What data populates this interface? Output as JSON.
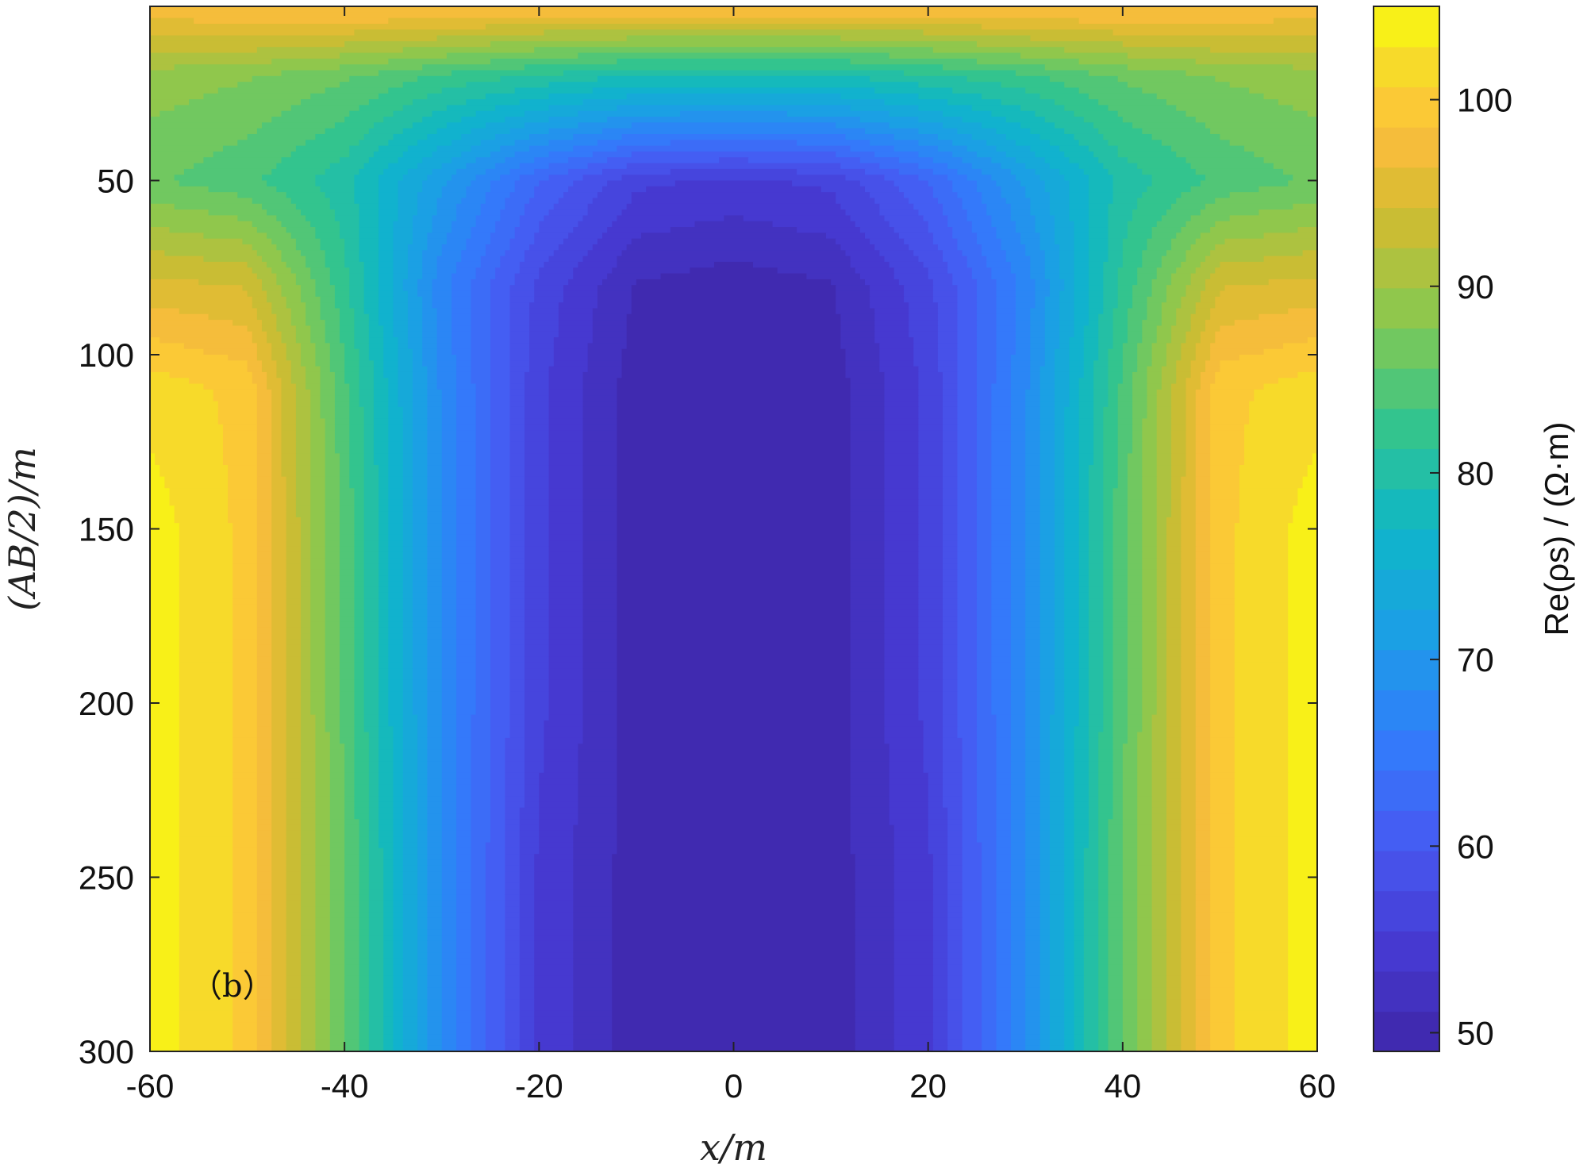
{
  "chart_data": {
    "type": "heatmap",
    "plot_kind": "filled contour",
    "panel_label": "（b）",
    "xlabel": "x/m",
    "ylabel": "(AB/2)/m",
    "colorbar_label": "Re(ρs) / (Ω·m)",
    "colormap": "parula",
    "x_ticks": [
      "-60",
      "-40",
      "-20",
      "0",
      "20",
      "40",
      "60"
    ],
    "y_ticks": [
      "50",
      "100",
      "150",
      "200",
      "250",
      "300"
    ],
    "colorbar_ticks": [
      "50",
      "60",
      "70",
      "80",
      "90",
      "100"
    ],
    "xlim": [
      -60,
      60
    ],
    "ylim": [
      0,
      300
    ],
    "y_reversed": true,
    "clim": [
      49,
      105
    ],
    "x": [
      -60,
      -50,
      -40,
      -30,
      -20,
      -10,
      0,
      10,
      20,
      30,
      40,
      50,
      60
    ],
    "y": [
      2,
      20,
      50,
      80,
      110,
      150,
      200,
      250,
      300
    ],
    "values": [
      [
        97,
        98,
        98,
        98,
        97,
        97,
        97,
        97,
        97,
        98,
        98,
        98,
        97
      ],
      [
        89,
        88,
        86,
        83,
        81,
        79,
        79,
        79,
        81,
        83,
        86,
        88,
        89
      ],
      [
        86,
        84,
        80,
        71,
        62,
        56,
        55,
        56,
        62,
        71,
        80,
        84,
        86
      ],
      [
        95,
        94,
        82,
        67,
        57,
        51,
        50,
        51,
        57,
        67,
        82,
        94,
        95
      ],
      [
        102,
        100,
        84,
        68,
        56,
        50,
        49,
        50,
        56,
        68,
        84,
        100,
        102
      ],
      [
        104,
        100,
        85,
        68,
        56,
        50,
        49,
        50,
        56,
        68,
        85,
        100,
        104
      ],
      [
        104,
        100,
        85,
        68,
        56,
        50,
        49,
        50,
        56,
        68,
        85,
        100,
        104
      ],
      [
        104,
        100,
        86,
        68,
        55,
        50,
        49,
        50,
        55,
        68,
        86,
        100,
        104
      ],
      [
        104,
        100,
        86,
        68,
        55,
        50,
        49,
        50,
        55,
        68,
        86,
        100,
        104
      ]
    ]
  }
}
